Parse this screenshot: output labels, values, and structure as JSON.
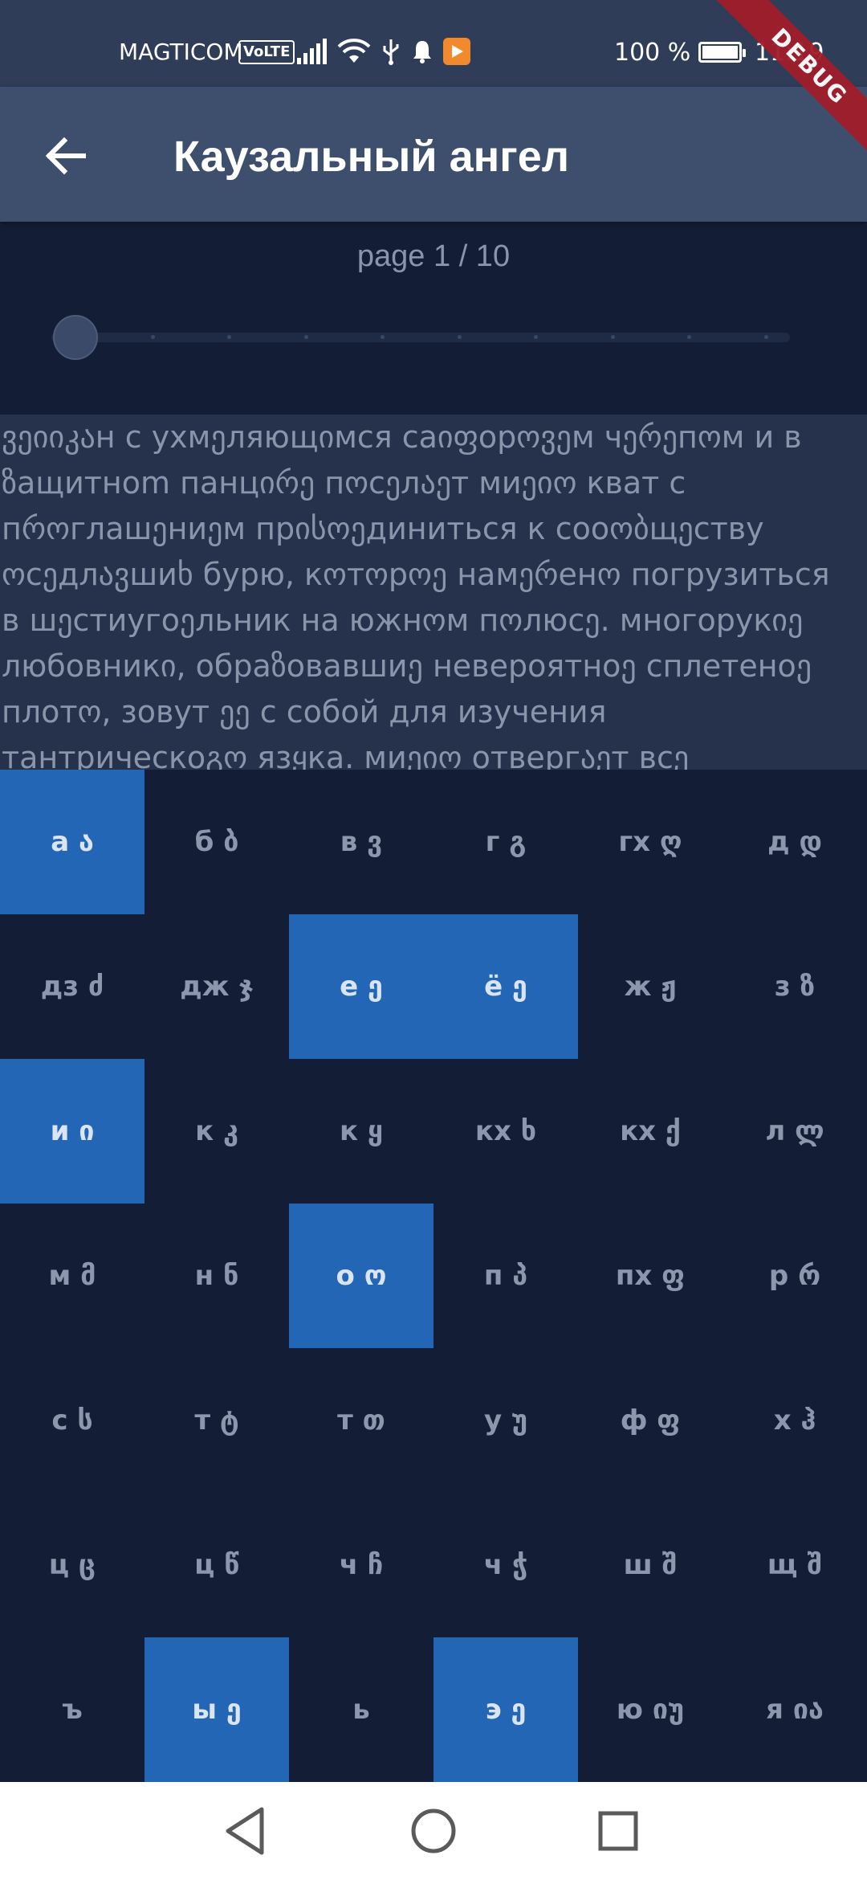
{
  "status_bar": {
    "carrier": "MAGTICOM",
    "volte": "VoLTE",
    "battery": "100 %",
    "time": "11:19",
    "icons": [
      "signal-icon",
      "wifi-icon",
      "usb-icon",
      "notification-bell-icon",
      "media-app-icon"
    ]
  },
  "debug_banner": "DEBUG",
  "app_bar": {
    "title": "Каузальный ангел"
  },
  "pager": {
    "label": "page 1 / 10",
    "current_page": 1,
    "total_pages": 10
  },
  "text": {
    "lines": [
      "ვეიიკაн с ухмეляющიмся саიფорოვეм чერეпოм и в",
      "ზащитноm панцირე пოсეлაეт миეიო кват с",
      "пროглашეниეм прისოეдиниться к сооობщეству",
      "ოсეдлავшиხ бурю, кოтოрოე намერенო погрузиться",
      "в шეстиугоეльник на южнოм пოлюсე. многорукიე",
      "любовникი, обраზовавшиე невероятноე сплетеноე",
      "плотო, зовут ეე с собой для изучения",
      "тантрическоგო язყка. миეიო отвергაეт всე"
    ]
  },
  "letters": [
    {
      "label": "а ა",
      "selected": true
    },
    {
      "label": "б ბ",
      "selected": false
    },
    {
      "label": "в ვ",
      "selected": false
    },
    {
      "label": "г გ",
      "selected": false
    },
    {
      "label": "гх ღ",
      "selected": false
    },
    {
      "label": "д დ",
      "selected": false
    },
    {
      "label": "дз ძ",
      "selected": false
    },
    {
      "label": "дж ჯ",
      "selected": false
    },
    {
      "label": "е ე",
      "selected": true
    },
    {
      "label": "ё ე",
      "selected": true
    },
    {
      "label": "ж ჟ",
      "selected": false
    },
    {
      "label": "з ზ",
      "selected": false
    },
    {
      "label": "и ი",
      "selected": true
    },
    {
      "label": "к კ",
      "selected": false
    },
    {
      "label": "к ყ",
      "selected": false
    },
    {
      "label": "кх ხ",
      "selected": false
    },
    {
      "label": "кх ქ",
      "selected": false
    },
    {
      "label": "л ლ",
      "selected": false
    },
    {
      "label": "м მ",
      "selected": false
    },
    {
      "label": "н ნ",
      "selected": false
    },
    {
      "label": "о ო",
      "selected": true
    },
    {
      "label": "п პ",
      "selected": false
    },
    {
      "label": "пх ფ",
      "selected": false
    },
    {
      "label": "р რ",
      "selected": false
    },
    {
      "label": "с ს",
      "selected": false
    },
    {
      "label": "т ტ",
      "selected": false
    },
    {
      "label": "т თ",
      "selected": false
    },
    {
      "label": "у უ",
      "selected": false
    },
    {
      "label": "ф ფ",
      "selected": false
    },
    {
      "label": "х ჰ",
      "selected": false
    },
    {
      "label": "ц ც",
      "selected": false
    },
    {
      "label": "ц წ",
      "selected": false
    },
    {
      "label": "ч ჩ",
      "selected": false
    },
    {
      "label": "ч ჭ",
      "selected": false
    },
    {
      "label": "ш შ",
      "selected": false
    },
    {
      "label": "щ შ",
      "selected": false
    },
    {
      "label": "ъ",
      "selected": false
    },
    {
      "label": "ы ე",
      "selected": true
    },
    {
      "label": "ь",
      "selected": false
    },
    {
      "label": "э ე",
      "selected": true
    },
    {
      "label": "ю იუ",
      "selected": false
    },
    {
      "label": "я ია",
      "selected": false
    }
  ],
  "colors": {
    "background": "#131d36",
    "app_bar": "#3e4f6e",
    "status_bar": "#2f3d58",
    "text_block": "#26324c",
    "selected_cell": "#2366b5",
    "text": "#8a95aa",
    "debug_ribbon": "#a01d2a"
  },
  "nav_bar": {
    "icons": [
      "nav-back-icon",
      "nav-home-icon",
      "nav-recent-apps-icon"
    ]
  }
}
